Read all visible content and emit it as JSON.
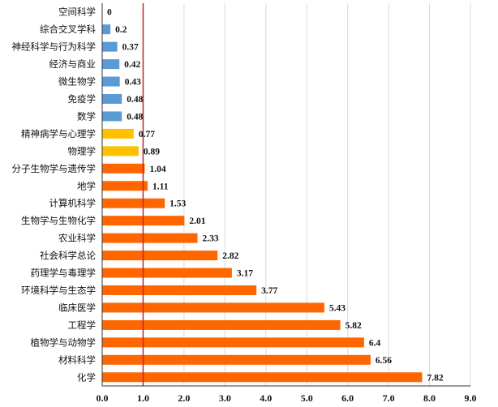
{
  "chart_data": {
    "type": "bar",
    "orientation": "horizontal",
    "categories": [
      "空间科学",
      "综合交叉学科",
      "神经科学与行为科学",
      "经济与商业",
      "微生物学",
      "免疫学",
      "数学",
      "精神病学与心理学",
      "物理学",
      "分子生物学与遗传学",
      "地学",
      "计算机科学",
      "生物学与生物化学",
      "农业科学",
      "社会科学总论",
      "药理学与毒理学",
      "环境科学与生态学",
      "临床医学",
      "工程学",
      "植物学与动物学",
      "材料科学",
      "化学"
    ],
    "values": [
      0,
      0.2,
      0.37,
      0.42,
      0.43,
      0.48,
      0.48,
      0.77,
      0.89,
      1.04,
      1.11,
      1.53,
      2.01,
      2.33,
      2.82,
      3.17,
      3.77,
      5.43,
      5.82,
      6.4,
      6.56,
      7.82
    ],
    "value_labels": [
      "0",
      "0.2",
      "0.37",
      "0.42",
      "0.43",
      "0.48",
      "0.48",
      "0.77",
      "0.89",
      "1.04",
      "1.11",
      "1.53",
      "2.01",
      "2.33",
      "2.82",
      "3.17",
      "3.77",
      "5.43",
      "5.82",
      "6.4",
      "6.56",
      "7.82"
    ],
    "xlim": [
      0,
      9
    ],
    "x_ticks": [
      "0.0",
      "1.0",
      "2.0",
      "3.0",
      "4.0",
      "5.0",
      "6.0",
      "7.0",
      "8.0",
      "9.0"
    ],
    "reference_line": 1.0,
    "reference_line_color": "#c0272d",
    "colors": {
      "below_0.5": "#5b9bd5",
      "between_0.5_and_1": "#ffc000",
      "above_1": "#ff6600"
    },
    "grid": "vertical",
    "legend": "none",
    "title": "",
    "xlabel": "",
    "ylabel": ""
  }
}
